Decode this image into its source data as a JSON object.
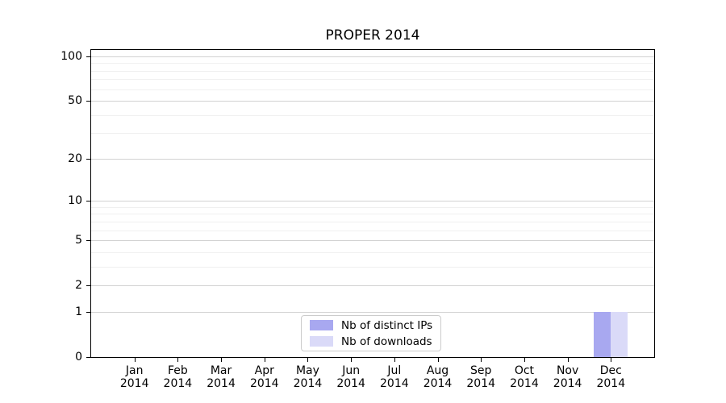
{
  "chart_data": {
    "type": "bar",
    "title": "PROPER 2014",
    "xlabel": "",
    "ylabel": "",
    "categories": [
      {
        "month": "Jan",
        "year": "2014"
      },
      {
        "month": "Feb",
        "year": "2014"
      },
      {
        "month": "Mar",
        "year": "2014"
      },
      {
        "month": "Apr",
        "year": "2014"
      },
      {
        "month": "May",
        "year": "2014"
      },
      {
        "month": "Jun",
        "year": "2014"
      },
      {
        "month": "Jul",
        "year": "2014"
      },
      {
        "month": "Aug",
        "year": "2014"
      },
      {
        "month": "Sep",
        "year": "2014"
      },
      {
        "month": "Oct",
        "year": "2014"
      },
      {
        "month": "Nov",
        "year": "2014"
      },
      {
        "month": "Dec",
        "year": "2014"
      }
    ],
    "series": [
      {
        "name": "Nb of distinct IPs",
        "color": "#a8a8f0",
        "values": [
          0,
          0,
          0,
          0,
          0,
          0,
          0,
          0,
          0,
          0,
          0,
          1
        ]
      },
      {
        "name": "Nb of downloads",
        "color": "#dadaf8",
        "values": [
          0,
          0,
          0,
          0,
          0,
          0,
          0,
          0,
          0,
          0,
          0,
          1
        ]
      }
    ],
    "y_axis": {
      "scale": "log1p",
      "range": [
        0,
        100
      ],
      "major_ticks": [
        0,
        1,
        2,
        5,
        10,
        20,
        50,
        100
      ],
      "minor_gridlines": [
        3,
        4,
        6,
        7,
        8,
        9,
        30,
        40,
        60,
        70,
        80,
        90
      ]
    },
    "legend": {
      "position": "bottom-center",
      "entries": [
        "Nb of distinct IPs",
        "Nb of downloads"
      ]
    },
    "grid": {
      "major_color": "#d2d2d2",
      "minor_color": "#f0f0f0"
    },
    "colors": {
      "background": "#ffffff",
      "axis": "#000000",
      "text": "#000000"
    }
  }
}
